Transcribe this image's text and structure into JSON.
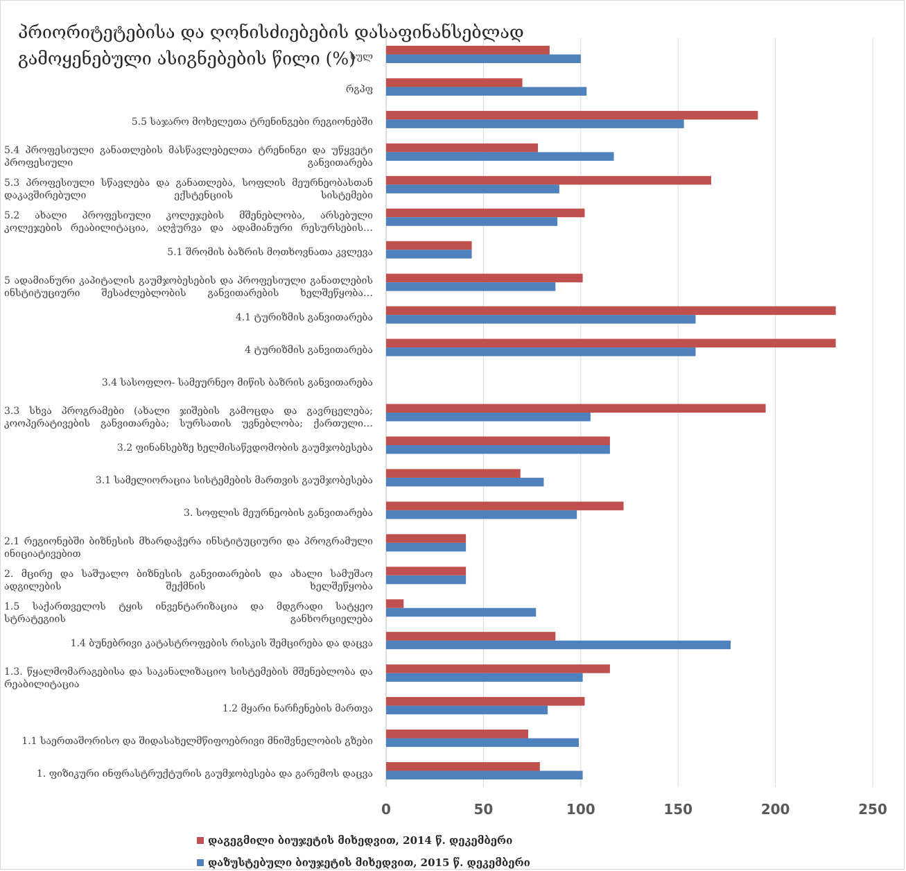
{
  "chart_data": {
    "type": "bar",
    "orientation": "horizontal",
    "title": "პრიორიტეტებისა და ღონისძიებების დასაფინანსებლად გამოყენებული ასიგნებების წილი (%)",
    "categories": [
      "1. ფიზიკური ინფრასტრუქტურის გაუმჯობესება და გარემოს დაცვა",
      "1.1 საერთაშორისო და შიდასახელმწიფოებრივი მნიშვნელობის გზები",
      "1.2 მყარი ნარჩენების მართვა",
      "1.3. წყალმომარაგებისა და საკანალიზაციო სისტემების მშენებლობა და რეაბილიტაცია",
      "1.4 ბუნებრივი კატასტროფების რისკის შემცირება და დაცვა",
      "1.5 საქართველოს ტყის ინვენტარიზაცია და მდგრადი სატყეო სტრატეგიის განხორციელება",
      "2. მცირე და საშუალო ბიზნესის განვითარების და ახალი სამუშაო ადგილების შექმნის ხელშეწყობა",
      "2.1 რეგიონებში ბიზნესის მხარდაჭერა ინსტიტუციური და პროგრამული ინიციატივებით",
      "3. სოფლის მეურნეობის განვითარება",
      "3.1 სამელიორაცია სისტემების მართვის გაუმჯობესება",
      "3.2 ფინანსებზე ხელმისაწვდომობის გაუმჯობესება",
      "3.3 სხვა პროგრამები (ახალი ჯიშების გამოცდა და გავრცელება; კოოპერატივების განვითარება; სურსათის უვნებლობა; ქართული…",
      "3.4 სასოფლო- სამეურნეო მიწის ბაზრის განვითარება",
      "4 ტურიზმის განვითარება",
      "4.1 ტურიზმის განვითარება",
      "5 ადამიანური კაპიტალის გაუმჯობესების და პროფესიული განათლების ინსტიტუციური შესაძლებლობის განვითარების ხელშეწყობა…",
      "5.1 შრომის ბაზრის მოთხოვნათა კვლევა",
      "5.2 ახალი პროფესიული კოლეჯების მშენებლობა, არსებული კოლეჯების რეაბილიტაცია, აღჭურვა და ადამიანური რესურსების…",
      "5.3 პროფესიული სწავლება და განათლება, სოფლის მეურნეობასთან დაკავშირებული ექსტენციის სისტემები",
      "5.4 პროფესიული განათლების მასწავლებელთა ტრენინგი და უწყვეტი პროფესიული განვითარება",
      "5.5 საჯარო მოხელეთა ტრენინგები რეგიონებში",
      "რგპფ",
      "სულ"
    ],
    "series": [
      {
        "name": "დაგეგმილი ბიუჯეტის მიხედვით, 2014 წ. დეკემბერი",
        "color": "#c0504d",
        "values": [
          79,
          73,
          102,
          115,
          87,
          9,
          41,
          41,
          122,
          69,
          115,
          195,
          0,
          231,
          231,
          101,
          44,
          102,
          167,
          78,
          191,
          70,
          84
        ]
      },
      {
        "name": "დაზუსტებული ბიუჯეტის მიხედვით, 2015 წ. დეკემბერი",
        "color": "#4f81bd",
        "values": [
          101,
          99,
          83,
          101,
          177,
          77,
          41,
          41,
          98,
          81,
          115,
          105,
          0,
          159,
          159,
          87,
          44,
          88,
          89,
          117,
          153,
          103,
          100
        ]
      }
    ],
    "xlim": [
      0,
      250
    ],
    "xticks": [
      "0",
      "50",
      "100",
      "150",
      "200",
      "250"
    ],
    "grid": true,
    "legend_position": "bottom"
  }
}
